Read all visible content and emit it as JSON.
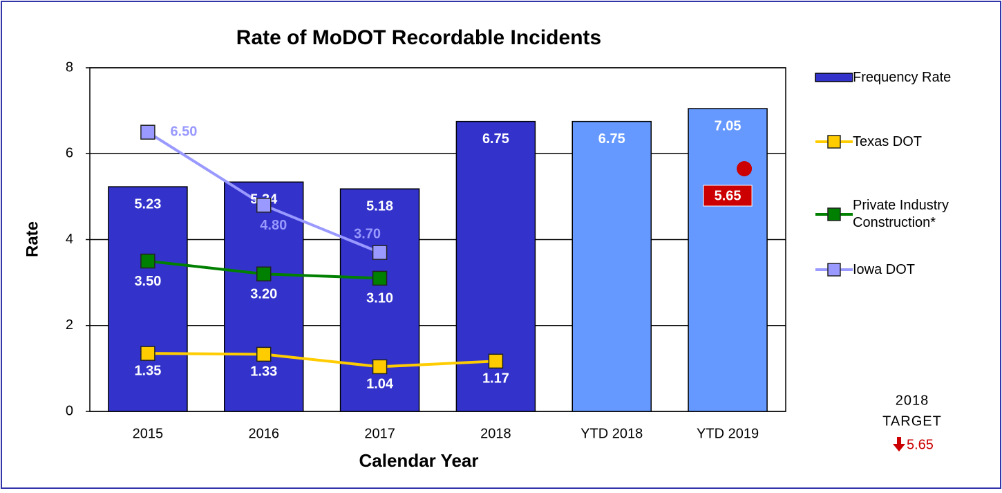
{
  "chart_data": {
    "type": "bar",
    "title": "Rate of MoDOT Recordable Incidents",
    "x_label": "Calendar Year",
    "y_label": "Rate",
    "categories": [
      "2015",
      "2016",
      "2017",
      "2018",
      "YTD 2018",
      "YTD 2019"
    ],
    "ylim": [
      0,
      8
    ],
    "yticks": [
      0,
      2,
      4,
      6,
      8
    ],
    "grid": true,
    "legend": "right",
    "series": [
      {
        "name": "Frequency Rate",
        "type": "bar",
        "color": "#3333cc",
        "colors": [
          "#3333cc",
          "#3333cc",
          "#3333cc",
          "#3333cc",
          "#6699ff",
          "#6699ff"
        ],
        "values": [
          5.23,
          5.34,
          5.18,
          6.75,
          6.75,
          7.05
        ]
      },
      {
        "name": "Texas DOT",
        "type": "line",
        "color": "#ffcc00",
        "values": [
          1.35,
          1.33,
          1.04,
          1.17,
          null,
          null
        ]
      },
      {
        "name": "Private Industry Construction*",
        "type": "line",
        "color": "#008000",
        "values": [
          3.5,
          3.2,
          3.1,
          null,
          null,
          null
        ],
        "value_labels": [
          "3.50",
          "3.20",
          "3.10",
          null,
          null,
          null
        ]
      },
      {
        "name": "Iowa DOT",
        "type": "line",
        "color": "#9999ff",
        "values": [
          6.5,
          4.8,
          3.7,
          null,
          null,
          null
        ],
        "value_labels": [
          "6.50",
          "4.80",
          "3.70",
          null,
          null,
          null
        ]
      }
    ],
    "target": {
      "color": "#cc0000",
      "values": [
        null,
        null,
        null,
        null,
        null,
        5.65
      ]
    },
    "annotation": {
      "lines": [
        "2018",
        "TARGET"
      ],
      "value": 5.65,
      "color": "#cc0000"
    }
  }
}
